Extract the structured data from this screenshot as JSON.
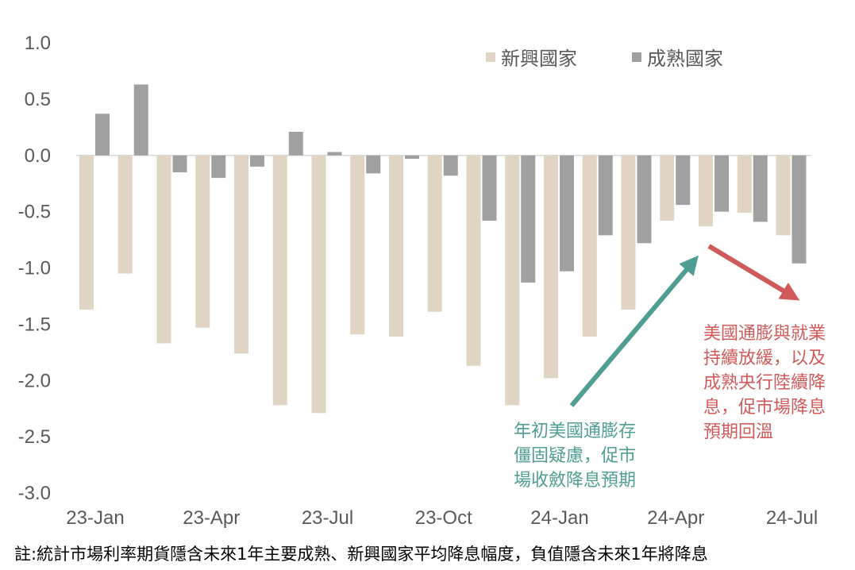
{
  "chart_data": {
    "type": "bar",
    "categories": [
      "23-Jan",
      "23-Feb",
      "23-Mar",
      "23-Apr",
      "23-May",
      "23-Jun",
      "23-Jul",
      "23-Aug",
      "23-Sep",
      "23-Oct",
      "23-Nov",
      "23-Dec",
      "24-Jan",
      "24-Feb",
      "24-Mar",
      "24-Apr",
      "24-May",
      "24-Jun",
      "24-Jul"
    ],
    "x_tick_labels": [
      "23-Jan",
      "23-Apr",
      "23-Jul",
      "23-Oct",
      "24-Jan",
      "24-Apr",
      "24-Jul"
    ],
    "series": [
      {
        "name": "新興國家",
        "color": "#e0d4c2",
        "values": [
          -1.37,
          -1.05,
          -1.67,
          -1.53,
          -1.76,
          -2.22,
          -2.29,
          -1.59,
          -1.61,
          -1.39,
          -1.87,
          -2.22,
          -1.98,
          -1.61,
          -1.37,
          -0.58,
          -0.63,
          -0.51,
          -0.71
        ]
      },
      {
        "name": "成熟國家",
        "color": "#a0a0a0",
        "values": [
          0.37,
          0.63,
          -0.15,
          -0.2,
          -0.1,
          0.21,
          0.03,
          -0.16,
          -0.03,
          -0.18,
          -0.58,
          -1.13,
          -1.03,
          -0.71,
          -0.78,
          -0.44,
          -0.5,
          -0.59,
          -0.96
        ]
      }
    ],
    "ylim": [
      -3.0,
      1.0
    ],
    "y_ticks": [
      "1.0",
      "0.5",
      "0.0",
      "-0.5",
      "-1.0",
      "-1.5",
      "-2.0",
      "-2.5",
      "-3.0"
    ],
    "grid": false,
    "legend_position": "top-right",
    "annotations": [
      {
        "text": "年初美國通膨存\n僵固疑慮，促市\n場收斂降息預期",
        "color": "#4f9e93",
        "arrow": "up"
      },
      {
        "text": "美國通膨與就業\n持續放緩，以及\n成熟央行陸續降\n息，促市場降息\n預期回溫",
        "color": "#d05a5a",
        "arrow": "down"
      }
    ]
  },
  "footnote": "註:統計市場利率期貨隱含未來1年主要成熟、新興國家平均降息幅度，負值隱含未來1年將降息"
}
